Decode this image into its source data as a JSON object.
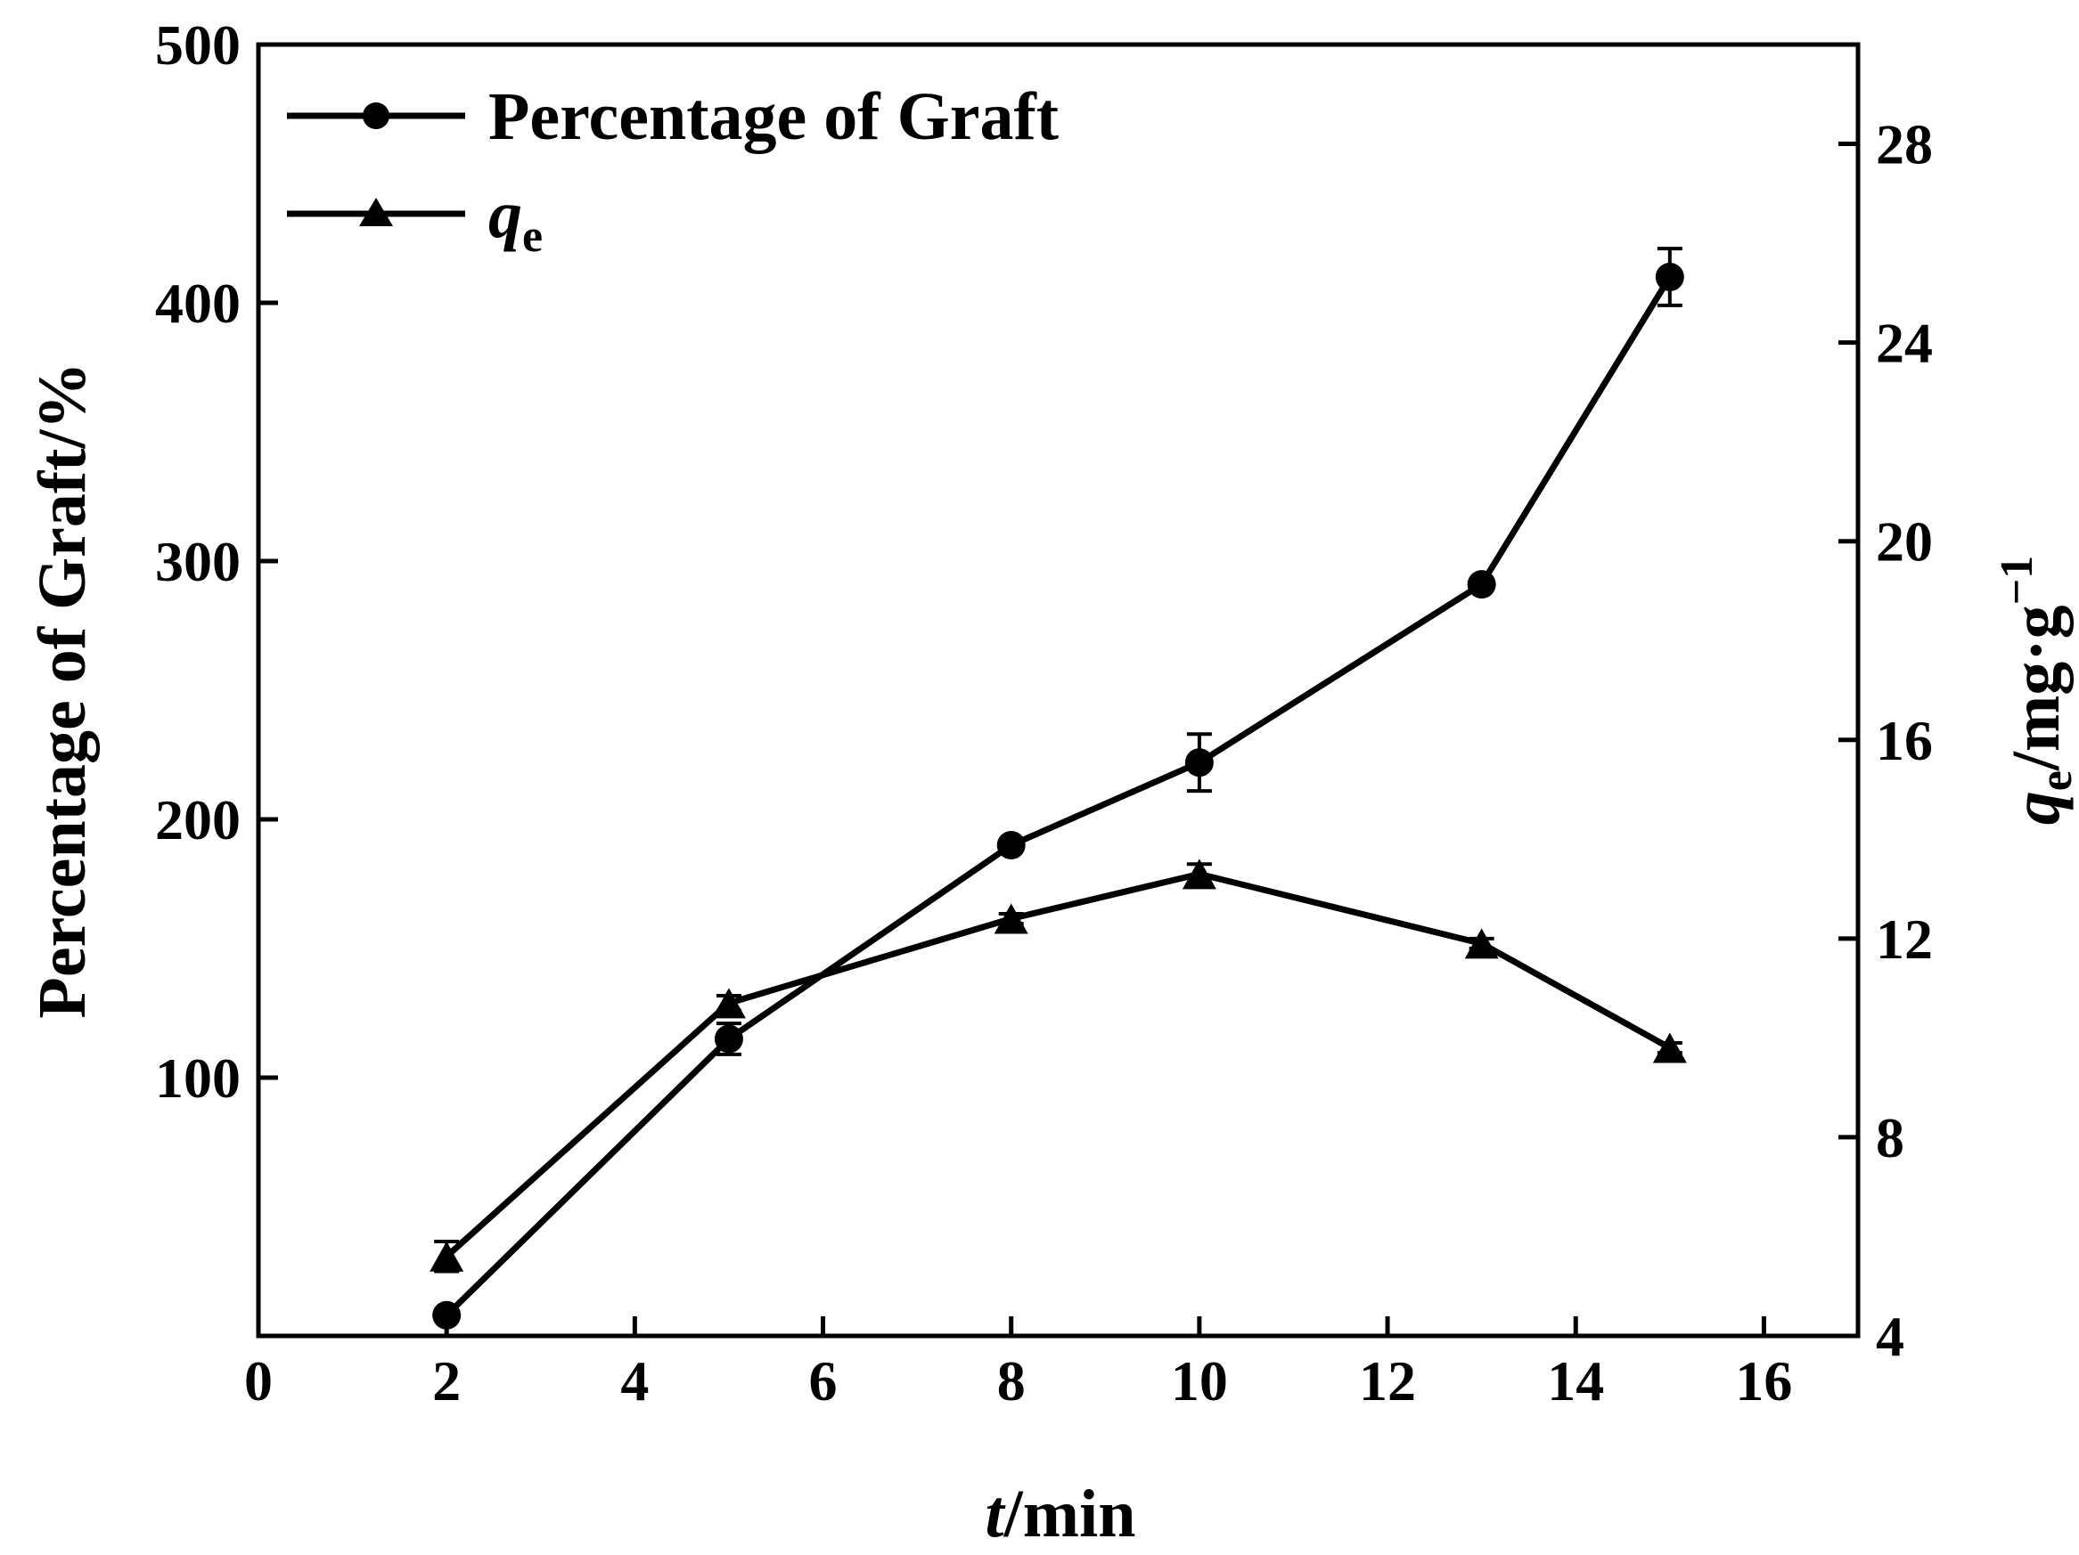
{
  "chart_data": {
    "type": "line",
    "x_axis": {
      "label_italic": "t",
      "label_rest": "/min",
      "range": [
        0,
        17
      ],
      "ticks": [
        0,
        2,
        4,
        6,
        8,
        10,
        12,
        14,
        16
      ]
    },
    "y_axis_left": {
      "label": "Percentage of Graft/%",
      "range": [
        0,
        500
      ],
      "ticks": [
        100,
        200,
        300,
        400,
        500
      ],
      "tick_labels": [
        "100",
        "200",
        "300",
        "400",
        "500"
      ]
    },
    "y_axis_right": {
      "label_italic": "q",
      "label_sub": "e",
      "label_rest": "/mg·g",
      "label_sup": "−1",
      "range": [
        4,
        30
      ],
      "ticks": [
        4,
        8,
        12,
        16,
        20,
        24,
        28
      ],
      "tick_labels": [
        "4",
        "8",
        "12",
        "16",
        "20",
        "24",
        "28"
      ]
    },
    "legend": {
      "position": "top-left",
      "series_1_label": "Percentage of Graft",
      "series_2_label_italic": "q",
      "series_2_label_sub": "e"
    },
    "series": [
      {
        "name": "Percentage of Graft",
        "axis": "left",
        "marker": "circle",
        "x": [
          2,
          5,
          8,
          10,
          13,
          15
        ],
        "y": [
          8,
          115,
          190,
          222,
          291,
          410
        ],
        "error": [
          0,
          6,
          0,
          11,
          0,
          11
        ]
      },
      {
        "name": "qe",
        "axis": "right",
        "marker": "triangle",
        "x": [
          2,
          5,
          8,
          10,
          13,
          15
        ],
        "y": [
          5.6,
          10.7,
          12.4,
          13.3,
          11.9,
          9.8
        ],
        "error": [
          0.3,
          0.15,
          0.1,
          0.2,
          0.1,
          0.1
        ]
      }
    ],
    "grid": false
  }
}
